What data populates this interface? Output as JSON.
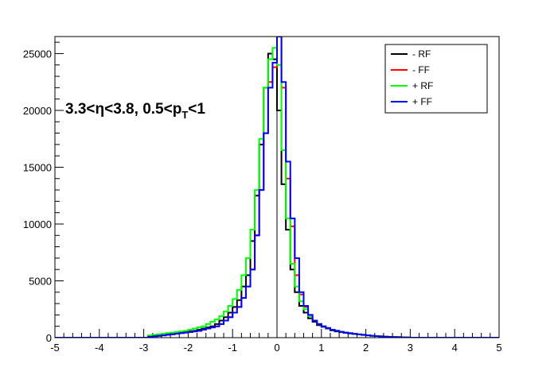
{
  "chart_data": {
    "type": "line",
    "title": "",
    "annotation": {
      "eta_range": "3.3<η<3.8, ",
      "pt_prefix": "0.5<p",
      "pt_sub": "T",
      "pt_suffix": "<1"
    },
    "xlim": [
      -5,
      5
    ],
    "ylim": [
      0,
      26500
    ],
    "x_ticks": [
      -5,
      -4,
      -3,
      -2,
      -1,
      0,
      1,
      2,
      3,
      4,
      5
    ],
    "y_ticks": [
      0,
      5000,
      10000,
      15000,
      20000,
      25000
    ],
    "x_tick_labels": [
      "-5",
      "-4",
      "-3",
      "-2",
      "-1",
      "0",
      "1",
      "2",
      "3",
      "4",
      "5"
    ],
    "y_tick_labels": [
      "0",
      "5000",
      "10000",
      "15000",
      "20000",
      "25000"
    ],
    "legend_position": "top-right",
    "bin_edges": [
      -2.9,
      -2.8,
      -2.7,
      -2.6,
      -2.5,
      -2.4,
      -2.3,
      -2.2,
      -2.1,
      -2.0,
      -1.9,
      -1.8,
      -1.7,
      -1.6,
      -1.5,
      -1.4,
      -1.3,
      -1.2,
      -1.1,
      -1.0,
      -0.9,
      -0.8,
      -0.7,
      -0.6,
      -0.5,
      -0.4,
      -0.3,
      -0.2,
      -0.1,
      0.0,
      0.1,
      0.2,
      0.3,
      0.4,
      0.5,
      0.6,
      0.7,
      0.8,
      0.9,
      1.0,
      1.1,
      1.2,
      1.3,
      1.4,
      1.5,
      1.6,
      1.7,
      1.8,
      1.9,
      2.0,
      2.1,
      2.2,
      2.3,
      2.4,
      2.5,
      2.6,
      2.7,
      2.8,
      2.9,
      3.0
    ],
    "series": [
      {
        "name": "- RF",
        "color": "#000000",
        "values": [
          100,
          150,
          200,
          250,
          300,
          350,
          400,
          450,
          500,
          550,
          600,
          700,
          800,
          900,
          1000,
          1200,
          1500,
          1800,
          2200,
          2700,
          3300,
          4500,
          5500,
          8500,
          12500,
          17000,
          22000,
          25000,
          24500,
          20000,
          13500,
          9500,
          6000,
          4000,
          2800,
          2200,
          1700,
          1400,
          1100,
          950,
          800,
          650,
          550,
          480,
          420,
          370,
          320,
          280,
          240,
          200,
          170,
          140,
          110,
          90,
          70,
          55,
          40,
          30,
          20
        ]
      },
      {
        "name": "- FF",
        "color": "#ff0000",
        "values": [
          80,
          120,
          160,
          200,
          250,
          300,
          350,
          400,
          450,
          500,
          550,
          600,
          700,
          800,
          900,
          1000,
          1200,
          1500,
          1800,
          2200,
          2700,
          3500,
          4500,
          6000,
          9000,
          13000,
          18000,
          22500,
          23800,
          26500,
          22000,
          14000,
          9800,
          5500,
          3800,
          2700,
          2000,
          1500,
          1200,
          1000,
          850,
          700,
          600,
          520,
          450,
          390,
          340,
          290,
          250,
          210,
          170,
          140,
          110,
          90,
          70,
          55,
          40,
          30,
          20
        ]
      },
      {
        "name": "+ RF",
        "color": "#00ff00",
        "values": [
          200,
          250,
          300,
          350,
          400,
          450,
          500,
          550,
          600,
          700,
          800,
          900,
          1000,
          1200,
          1400,
          1600,
          1900,
          2300,
          2800,
          3400,
          4200,
          5500,
          7000,
          9500,
          13000,
          17500,
          22000,
          24500,
          25500,
          24000,
          16500,
          10500,
          6500,
          4500,
          3200,
          2500,
          1900,
          1500,
          1200,
          1000,
          850,
          700,
          600,
          520,
          450,
          390,
          340,
          290,
          250,
          210,
          170,
          140,
          110,
          90,
          70,
          55,
          40,
          30,
          20
        ]
      },
      {
        "name": "+ FF",
        "color": "#0000ff",
        "values": [
          80,
          120,
          160,
          200,
          250,
          300,
          350,
          400,
          450,
          500,
          550,
          600,
          700,
          800,
          900,
          1000,
          1200,
          1500,
          1800,
          2200,
          2700,
          3500,
          4500,
          6000,
          9000,
          13000,
          18000,
          22000,
          24200,
          26500,
          22500,
          15500,
          10500,
          7000,
          4000,
          2800,
          2000,
          1500,
          1200,
          1000,
          850,
          700,
          600,
          520,
          450,
          390,
          340,
          290,
          250,
          210,
          170,
          140,
          110,
          90,
          70,
          55,
          40,
          30,
          20
        ]
      }
    ]
  }
}
